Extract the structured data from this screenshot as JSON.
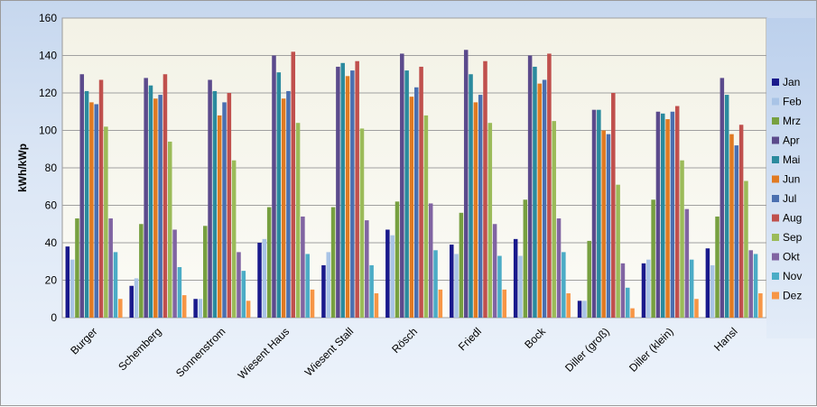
{
  "chart_data": {
    "type": "bar",
    "ylabel": "kWh/kWp",
    "ylim": [
      0,
      160
    ],
    "yticks": [
      0,
      20,
      40,
      60,
      80,
      100,
      120,
      140,
      160
    ],
    "grid": true,
    "legend_position": "right",
    "categories": [
      "Burger",
      "Schemberg",
      "Sonnenstrom",
      "Wiesent Haus",
      "Wiesent Stall",
      "Rösch",
      "Friedl",
      "Bock",
      "Diller (groß)",
      "Diller (klein)",
      "Hansl"
    ],
    "series": [
      {
        "name": "Jan",
        "color": "#1a1a8c",
        "values": [
          38,
          17,
          10,
          40,
          28,
          47,
          39,
          42,
          9,
          29,
          37
        ]
      },
      {
        "name": "Feb",
        "color": "#a9c4e6",
        "values": [
          31,
          21,
          10,
          42,
          35,
          44,
          34,
          33,
          9,
          31,
          28
        ]
      },
      {
        "name": "Mrz",
        "color": "#77a040",
        "values": [
          53,
          50,
          49,
          59,
          59,
          62,
          56,
          63,
          41,
          63,
          54
        ]
      },
      {
        "name": "Apr",
        "color": "#5b4a8c",
        "values": [
          130,
          128,
          127,
          140,
          134,
          141,
          143,
          140,
          111,
          110,
          128
        ]
      },
      {
        "name": "Mai",
        "color": "#2a8a9e",
        "values": [
          121,
          124,
          121,
          131,
          136,
          132,
          130,
          134,
          111,
          109,
          119
        ]
      },
      {
        "name": "Jun",
        "color": "#e07a22",
        "values": [
          115,
          117,
          108,
          117,
          129,
          118,
          115,
          125,
          100,
          106,
          98
        ]
      },
      {
        "name": "Jul",
        "color": "#4a6fb0",
        "values": [
          114,
          119,
          115,
          121,
          132,
          123,
          119,
          127,
          98,
          110,
          92
        ]
      },
      {
        "name": "Aug",
        "color": "#c0504d",
        "values": [
          127,
          130,
          120,
          142,
          137,
          134,
          137,
          141,
          120,
          113,
          103
        ]
      },
      {
        "name": "Sep",
        "color": "#9bbb59",
        "values": [
          102,
          94,
          84,
          104,
          101,
          108,
          104,
          105,
          71,
          84,
          73
        ]
      },
      {
        "name": "Okt",
        "color": "#8064a2",
        "values": [
          53,
          47,
          35,
          54,
          52,
          61,
          50,
          53,
          29,
          58,
          36
        ]
      },
      {
        "name": "Nov",
        "color": "#4bacc6",
        "values": [
          35,
          27,
          25,
          34,
          28,
          36,
          33,
          35,
          16,
          31,
          34
        ]
      },
      {
        "name": "Dez",
        "color": "#f79646",
        "values": [
          10,
          12,
          9,
          15,
          13,
          15,
          15,
          13,
          5,
          10,
          13
        ]
      }
    ]
  }
}
